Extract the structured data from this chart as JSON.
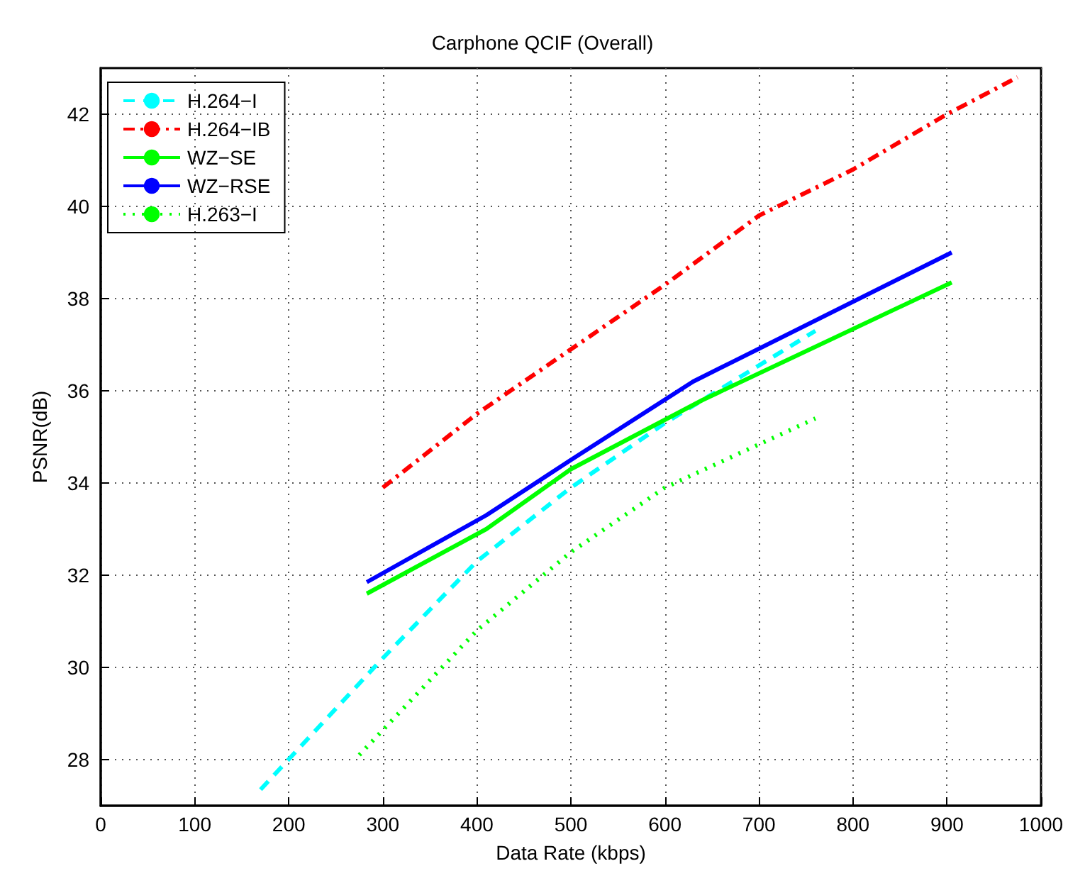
{
  "chart_data": {
    "type": "line",
    "title": "Carphone QCIF (Overall)",
    "xlabel": "Data Rate (kbps)",
    "ylabel": "PSNR(dB)",
    "xlim": [
      0,
      1000
    ],
    "xticks": [
      0,
      100,
      200,
      300,
      400,
      500,
      600,
      700,
      800,
      900,
      1000
    ],
    "ylim": [
      27,
      43
    ],
    "yticks": [
      28,
      30,
      32,
      34,
      36,
      38,
      40,
      42
    ],
    "grid": true,
    "legend": "top left",
    "marker": "none",
    "series": [
      {
        "name": "H.264−I",
        "color": "#00ffff",
        "line_style": "dashed",
        "x": [
          170,
          300,
          400,
          500,
          600,
          760
        ],
        "values": [
          27.35,
          30.2,
          32.3,
          33.9,
          35.3,
          37.3
        ]
      },
      {
        "name": "H.264−IB",
        "color": "#ff0000",
        "line_style": "dashdot",
        "x": [
          300,
          400,
          500,
          600,
          700,
          800,
          900,
          975
        ],
        "values": [
          33.9,
          35.5,
          36.9,
          38.3,
          39.8,
          40.8,
          42.0,
          42.8
        ]
      },
      {
        "name": "WZ−SE",
        "color": "#00ff00",
        "line_style": "solid",
        "x": [
          283,
          410,
          500,
          640,
          905
        ],
        "values": [
          31.6,
          33.0,
          34.3,
          35.8,
          38.35
        ]
      },
      {
        "name": "WZ−RSE",
        "color": "#0000ff",
        "line_style": "solid",
        "x": [
          283,
          410,
          500,
          630,
          905
        ],
        "values": [
          31.85,
          33.3,
          34.5,
          36.2,
          39.0
        ]
      },
      {
        "name": "H.263−I",
        "color": "#00ff00",
        "line_style": "dotted",
        "x": [
          275,
          400,
          500,
          600,
          760
        ],
        "values": [
          28.1,
          30.8,
          32.5,
          33.9,
          35.4
        ]
      }
    ]
  }
}
